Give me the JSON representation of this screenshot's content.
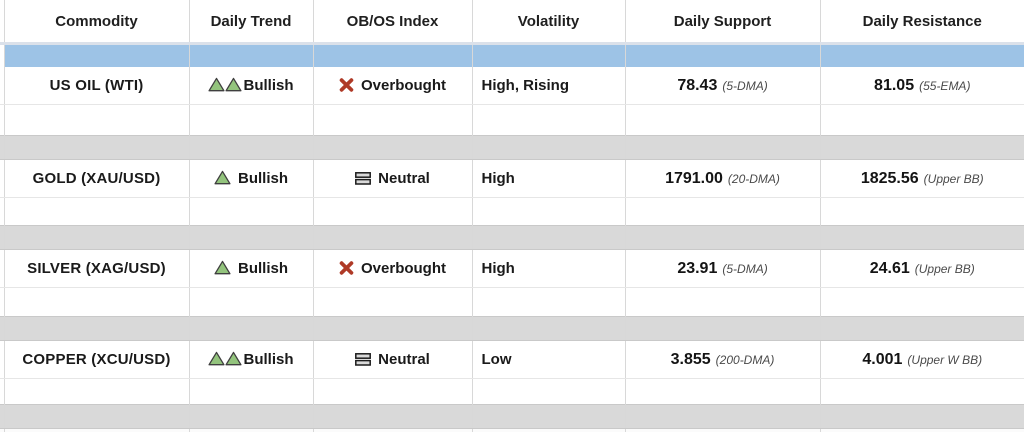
{
  "colors": {
    "band_blue": "#9DC3E6",
    "band_gray": "#D9D9D9",
    "bullish_green_fill": "#93C47D",
    "triangle_outline": "#3F3F3F",
    "overbought_red": "#AF3A27",
    "neutral_bar_fill": "#D9D9D9",
    "neutral_bar_outline": "#1C1C1C"
  },
  "table": {
    "columns": [
      "Commodity",
      "Daily Trend",
      "OB/OS Index",
      "Volatility",
      "Daily Support",
      "Daily Resistance"
    ],
    "rows": [
      {
        "commodity": "US OIL (WTI)",
        "trend": {
          "label": "Bullish",
          "icon": "double-up-triangle",
          "triangles": 2
        },
        "obos": {
          "label": "Overbought",
          "icon": "cross-mark"
        },
        "volatility": "High, Rising",
        "support": {
          "value": "78.43",
          "basis": "(5-DMA)"
        },
        "resistance": {
          "value": "81.05",
          "basis": "(55-EMA)"
        }
      },
      {
        "commodity": "GOLD (XAU/USD)",
        "trend": {
          "label": "Bullish",
          "icon": "up-triangle",
          "triangles": 1
        },
        "obos": {
          "label": "Neutral",
          "icon": "bars"
        },
        "volatility": "High",
        "support": {
          "value": "1791.00",
          "basis": "(20-DMA)"
        },
        "resistance": {
          "value": "1825.56",
          "basis": "(Upper BB)"
        }
      },
      {
        "commodity": "SILVER (XAG/USD)",
        "trend": {
          "label": "Bullish",
          "icon": "up-triangle",
          "triangles": 1
        },
        "obos": {
          "label": "Overbought",
          "icon": "cross-mark"
        },
        "volatility": "High",
        "support": {
          "value": "23.91",
          "basis": "(5-DMA)"
        },
        "resistance": {
          "value": "24.61",
          "basis": "(Upper BB)"
        }
      },
      {
        "commodity": "COPPER (XCU/USD)",
        "trend": {
          "label": "Bullish",
          "icon": "double-up-triangle",
          "triangles": 2
        },
        "obos": {
          "label": "Neutral",
          "icon": "bars"
        },
        "volatility": "Low",
        "support": {
          "value": "3.855",
          "basis": "(200-DMA)"
        },
        "resistance": {
          "value": "4.001",
          "basis": "(Upper W BB)"
        }
      }
    ]
  },
  "chart_data": {
    "type": "table",
    "columns": [
      "Commodity",
      "Daily Trend",
      "OB/OS Index",
      "Volatility",
      "Daily Support",
      "Daily Resistance"
    ],
    "rows": [
      [
        "US OIL (WTI)",
        "Bullish (strong)",
        "Overbought",
        "High, Rising",
        "78.43 (5-DMA)",
        "81.05 (55-EMA)"
      ],
      [
        "GOLD (XAU/USD)",
        "Bullish",
        "Neutral",
        "High",
        "1791.00 (20-DMA)",
        "1825.56 (Upper BB)"
      ],
      [
        "SILVER (XAG/USD)",
        "Bullish",
        "Overbought",
        "High",
        "23.91 (5-DMA)",
        "24.61 (Upper BB)"
      ],
      [
        "COPPER (XCU/USD)",
        "Bullish (strong)",
        "Neutral",
        "Low",
        "3.855 (200-DMA)",
        "4.001 (Upper W BB)"
      ]
    ]
  }
}
